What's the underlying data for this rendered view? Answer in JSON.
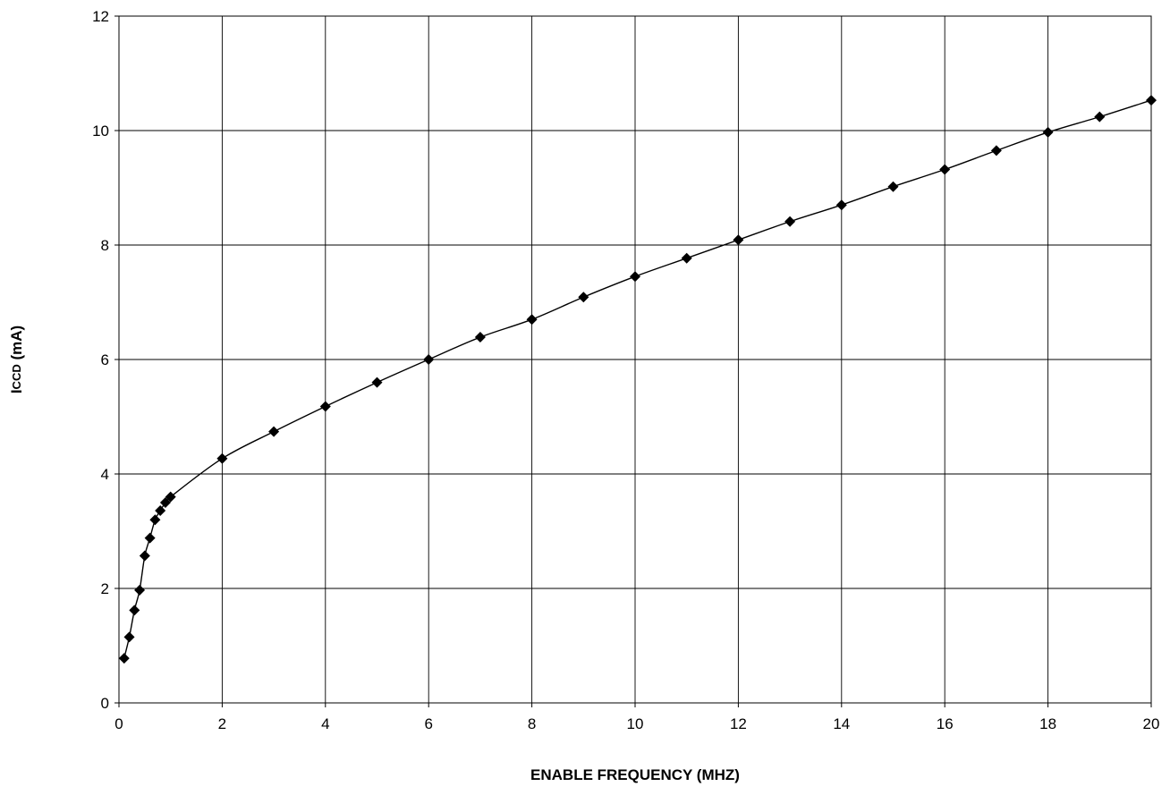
{
  "chart_data": {
    "type": "line",
    "title": "",
    "xlabel": "ENABLE FREQUENCY (MHZ)",
    "ylabel_main": "I",
    "ylabel_sub": "CCD",
    "ylabel_unit": " (mA)",
    "xlim": [
      0,
      20
    ],
    "ylim": [
      0,
      12
    ],
    "xticks": [
      0,
      2,
      4,
      6,
      8,
      10,
      12,
      14,
      16,
      18,
      20
    ],
    "yticks": [
      0,
      2,
      4,
      6,
      8,
      10,
      12
    ],
    "grid": true,
    "legend": "none",
    "marker": "diamond",
    "line_color": "#000000",
    "series": [
      {
        "x": [
          0.1,
          0.2,
          0.3,
          0.4,
          0.5,
          0.6,
          0.7,
          0.8,
          0.9,
          1,
          2,
          3,
          4,
          5,
          6,
          7,
          8,
          9,
          10,
          11,
          12,
          13,
          14,
          15,
          16,
          17,
          18,
          19,
          20
        ],
        "y": [
          0.78,
          1.15,
          1.62,
          1.97,
          2.57,
          2.88,
          3.2,
          3.36,
          3.5,
          3.6,
          4.27,
          4.74,
          5.18,
          5.6,
          6.0,
          6.39,
          6.7,
          7.09,
          7.45,
          7.77,
          8.09,
          8.41,
          8.7,
          9.02,
          9.32,
          9.65,
          9.97,
          10.24,
          10.53
        ]
      }
    ]
  }
}
